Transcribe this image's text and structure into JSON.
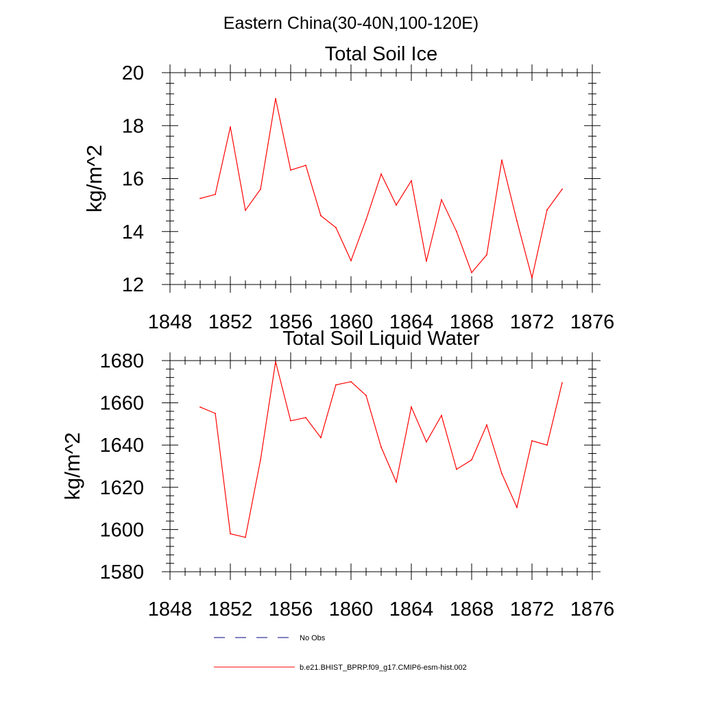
{
  "suptitle": "Eastern China(30-40N,100-120E)",
  "colors": {
    "line": "#ff0000",
    "obs": "#000080",
    "axis": "#000000"
  },
  "legend": [
    {
      "label": "No Obs",
      "style": "dashed",
      "color": "#000080"
    },
    {
      "label": "b.e21.BHIST_BPRP.f09_g17.CMIP6-esm-hist.002",
      "style": "solid",
      "color": "#ff0000"
    }
  ],
  "chart_data": [
    {
      "type": "line",
      "title": "Total Soil Ice",
      "xlabel": "",
      "ylabel": "kg/m^2",
      "xlim": [
        1848,
        1876
      ],
      "ylim": [
        12,
        20
      ],
      "xticks": [
        1848,
        1852,
        1856,
        1860,
        1864,
        1868,
        1872,
        1876
      ],
      "yticks": [
        12,
        14,
        16,
        18,
        20
      ],
      "grid": false,
      "series": [
        {
          "x": [
            1850,
            1851,
            1852,
            1853,
            1854,
            1855,
            1856,
            1857,
            1858,
            1859,
            1860,
            1861,
            1862,
            1863,
            1864,
            1865,
            1866,
            1867,
            1868,
            1869,
            1870,
            1871,
            1872,
            1873,
            1874
          ],
          "values": [
            15.25,
            15.4,
            17.95,
            14.8,
            15.6,
            19.02,
            16.32,
            16.5,
            14.6,
            14.15,
            12.9,
            14.45,
            16.17,
            15.0,
            15.92,
            12.88,
            15.2,
            14.0,
            12.45,
            13.12,
            16.7,
            14.4,
            12.25,
            14.82,
            15.6
          ]
        }
      ]
    },
    {
      "type": "line",
      "title": "Total Soil Liquid Water",
      "xlabel": "",
      "ylabel": "kg/m^2",
      "xlim": [
        1848,
        1876
      ],
      "ylim": [
        1580,
        1680
      ],
      "xticks": [
        1848,
        1852,
        1856,
        1860,
        1864,
        1868,
        1872,
        1876
      ],
      "yticks": [
        1580,
        1600,
        1620,
        1640,
        1660,
        1680
      ],
      "grid": false,
      "series": [
        {
          "x": [
            1850,
            1851,
            1852,
            1853,
            1854,
            1855,
            1856,
            1857,
            1858,
            1859,
            1860,
            1861,
            1862,
            1863,
            1864,
            1865,
            1866,
            1867,
            1868,
            1869,
            1870,
            1871,
            1872,
            1873,
            1874
          ],
          "values": [
            1658,
            1655,
            1598,
            1596.3,
            1633,
            1679.5,
            1651.5,
            1653,
            1643.5,
            1668.5,
            1670,
            1663.5,
            1639,
            1622.5,
            1658,
            1641.5,
            1654,
            1628.5,
            1633,
            1649.5,
            1626.5,
            1610.5,
            1642,
            1640,
            1669.5
          ]
        }
      ]
    }
  ]
}
